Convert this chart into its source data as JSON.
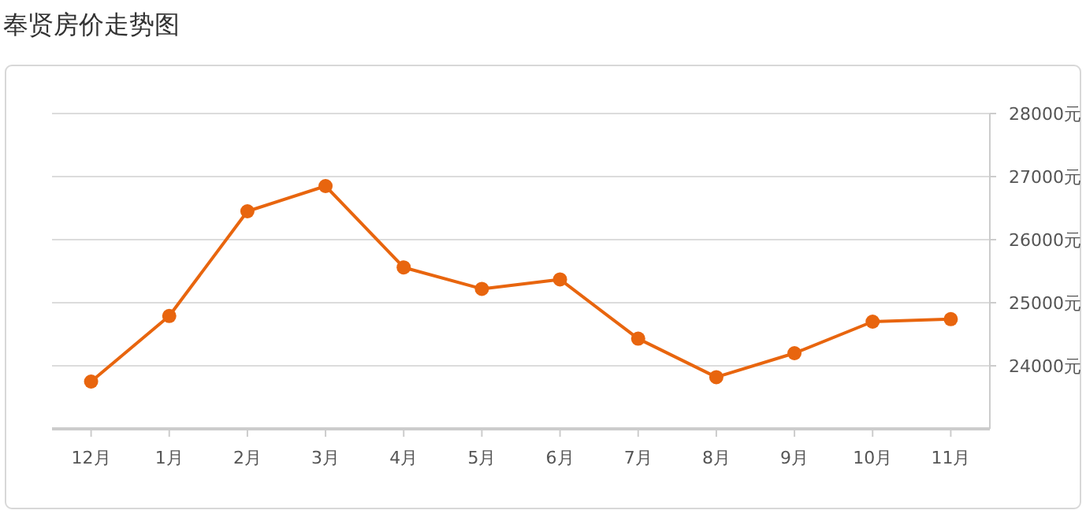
{
  "chart_data": {
    "type": "line",
    "title": "奉贤房价走势图",
    "categories": [
      "12月",
      "1月",
      "2月",
      "3月",
      "4月",
      "5月",
      "6月",
      "7月",
      "8月",
      "9月",
      "10月",
      "11月"
    ],
    "series": [
      {
        "color": "#e8650e",
        "values": [
          23750,
          24790,
          26450,
          26850,
          25560,
          25220,
          25370,
          24430,
          23820,
          24200,
          24700,
          24740
        ]
      }
    ],
    "ylim": [
      23000,
      28000
    ],
    "yticks": [
      {
        "value": 24000,
        "label": "24000元"
      },
      {
        "value": 25000,
        "label": "25000元"
      },
      {
        "value": 26000,
        "label": "26000元"
      },
      {
        "value": 27000,
        "label": "27000元"
      },
      {
        "value": 28000,
        "label": "28000元"
      }
    ],
    "grid": "y",
    "marker": "circle",
    "line_style": "solid"
  }
}
